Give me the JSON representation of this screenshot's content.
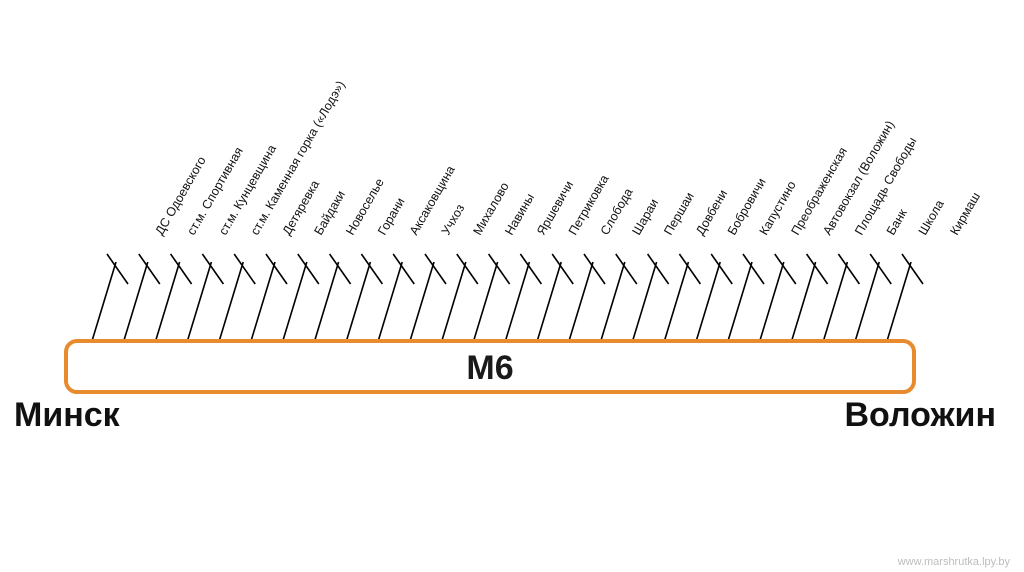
{
  "route": {
    "name": "М6",
    "start": "Минск",
    "end": "Воложин",
    "color": "#e88b2e"
  },
  "stops": [
    "ДС Одоевского",
    "ст.м. Спортивная",
    "ст.м. Кунцевщина",
    "ст.м. Каменная горка («Лодэ»)",
    "Детяревка",
    "Байдаки",
    "Новоселье",
    "Горани",
    "Аксаковщина",
    "Учхоз",
    "Михалово",
    "Навины",
    "Яршевичи",
    "Петриковка",
    "Слобода",
    "Шараи",
    "Першаи",
    "Довбени",
    "Бобровичи",
    "Капустино",
    "Преображенская",
    "Автовокзал (Воложин)",
    "Площадь Свободы",
    "Банк",
    "Школа",
    "Кирмаш"
  ],
  "watermark": "www.marshrutka.lpy.by"
}
